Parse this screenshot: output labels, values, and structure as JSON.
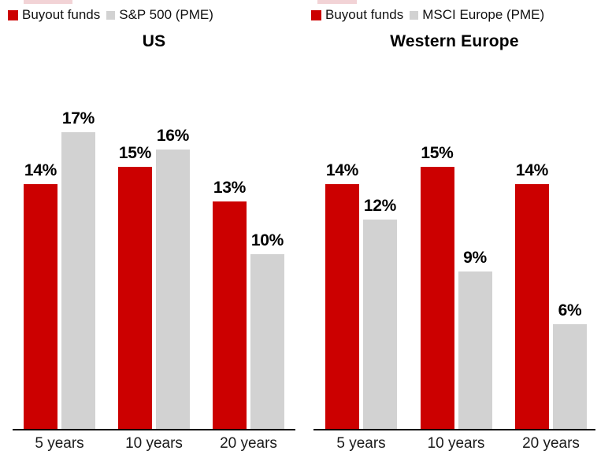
{
  "chart_data": [
    {
      "type": "bar",
      "title": "US",
      "categories": [
        "5 years",
        "10 years",
        "20 years"
      ],
      "series": [
        {
          "name": "Buyout funds",
          "color": "#cc0000",
          "values": [
            14,
            15,
            13
          ]
        },
        {
          "name": "S&P 500 (PME)",
          "color": "#d2d2d2",
          "values": [
            17,
            16,
            10
          ]
        }
      ],
      "value_suffix": "%",
      "data_labels": true,
      "ylim": [
        0,
        18
      ],
      "y_axis_visible": false,
      "grid": false,
      "legend_position": "top-left"
    },
    {
      "type": "bar",
      "title": "Western Europe",
      "categories": [
        "5 years",
        "10 years",
        "20 years"
      ],
      "series": [
        {
          "name": "Buyout funds",
          "color": "#cc0000",
          "values": [
            14,
            15,
            14
          ]
        },
        {
          "name": "MSCI Europe (PME)",
          "color": "#d2d2d2",
          "values": [
            12,
            9,
            6
          ]
        }
      ],
      "value_suffix": "%",
      "data_labels": true,
      "ylim": [
        0,
        18
      ],
      "y_axis_visible": false,
      "grid": false,
      "legend_position": "top-left"
    }
  ]
}
